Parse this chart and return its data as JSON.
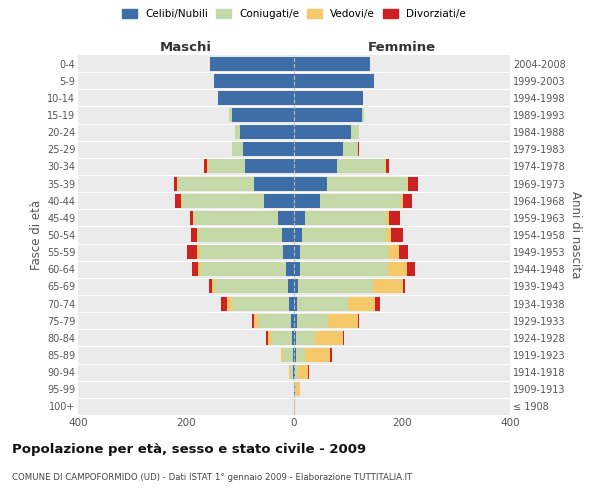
{
  "age_groups": [
    "100+",
    "95-99",
    "90-94",
    "85-89",
    "80-84",
    "75-79",
    "70-74",
    "65-69",
    "60-64",
    "55-59",
    "50-54",
    "45-49",
    "40-44",
    "35-39",
    "30-34",
    "25-29",
    "20-24",
    "15-19",
    "10-14",
    "5-9",
    "0-4"
  ],
  "birth_years": [
    "≤ 1908",
    "1909-1913",
    "1914-1918",
    "1919-1923",
    "1924-1928",
    "1929-1933",
    "1934-1938",
    "1939-1943",
    "1944-1948",
    "1949-1953",
    "1954-1958",
    "1959-1963",
    "1964-1968",
    "1969-1973",
    "1974-1978",
    "1979-1983",
    "1984-1988",
    "1989-1993",
    "1994-1998",
    "1999-2003",
    "2004-2008"
  ],
  "colors": {
    "celibi": "#3d6ea8",
    "coniugati": "#c5d9a8",
    "vedovi": "#f5c96a",
    "divorziati": "#cc2222"
  },
  "maschi": {
    "celibi": [
      0,
      0,
      2,
      2,
      3,
      5,
      10,
      12,
      15,
      20,
      22,
      30,
      55,
      75,
      90,
      95,
      100,
      115,
      140,
      148,
      155
    ],
    "coniugati": [
      0,
      0,
      5,
      18,
      38,
      62,
      105,
      135,
      158,
      155,
      155,
      155,
      152,
      140,
      70,
      20,
      10,
      5,
      0,
      0,
      0
    ],
    "vedovi": [
      0,
      0,
      2,
      5,
      8,
      8,
      10,
      5,
      5,
      5,
      3,
      2,
      2,
      2,
      2,
      0,
      0,
      0,
      0,
      0,
      0
    ],
    "divorziati": [
      0,
      0,
      0,
      0,
      2,
      2,
      10,
      5,
      10,
      18,
      10,
      5,
      12,
      5,
      5,
      0,
      0,
      0,
      0,
      0,
      0
    ]
  },
  "femmine": {
    "celibi": [
      0,
      2,
      2,
      3,
      3,
      5,
      5,
      8,
      12,
      12,
      15,
      20,
      48,
      62,
      80,
      90,
      105,
      125,
      128,
      148,
      140
    ],
    "coniugati": [
      0,
      2,
      5,
      18,
      35,
      58,
      95,
      138,
      162,
      162,
      155,
      150,
      150,
      148,
      88,
      28,
      15,
      5,
      0,
      0,
      0
    ],
    "vedovi": [
      2,
      8,
      18,
      45,
      52,
      55,
      50,
      55,
      35,
      20,
      10,
      5,
      3,
      2,
      2,
      0,
      0,
      0,
      0,
      0,
      0
    ],
    "divorziati": [
      0,
      0,
      2,
      5,
      3,
      2,
      10,
      5,
      15,
      18,
      22,
      22,
      18,
      18,
      5,
      2,
      0,
      0,
      0,
      0,
      0
    ]
  },
  "title": "Popolazione per età, sesso e stato civile - 2009",
  "subtitle": "COMUNE DI CAMPOFORMIDO (UD) - Dati ISTAT 1° gennaio 2009 - Elaborazione TUTTITALIA.IT",
  "xlabel_maschi": "Maschi",
  "xlabel_femmine": "Femmine",
  "ylabel_left": "Fasce di età",
  "ylabel_right": "Anni di nascita",
  "legend_labels": [
    "Celibi/Nubili",
    "Coniugati/e",
    "Vedovi/e",
    "Divorziati/e"
  ],
  "xlim": 400
}
